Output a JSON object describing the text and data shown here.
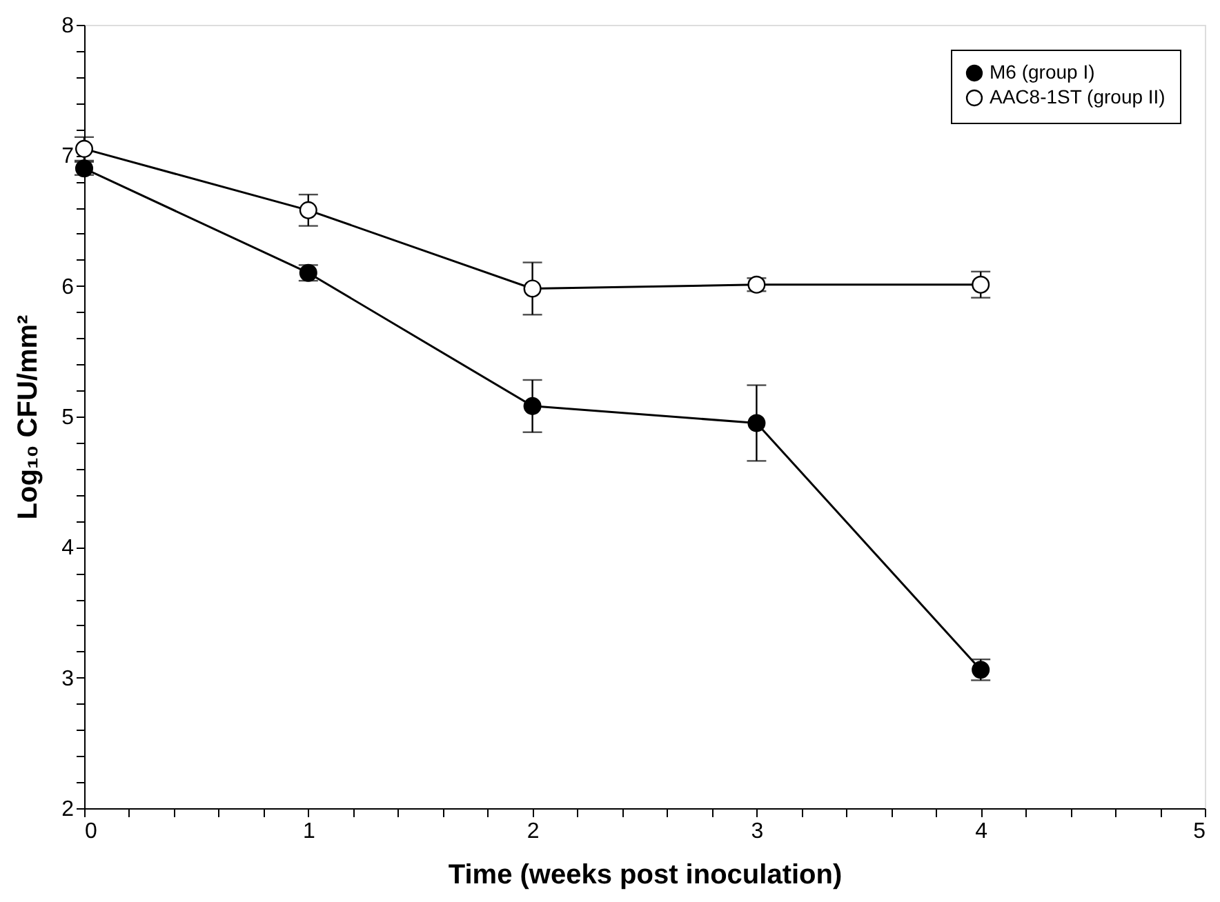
{
  "chart_data": {
    "type": "line",
    "xlabel": "Time (weeks post inoculation)",
    "ylabel": "Log₁₀ CFU/mm²",
    "x": [
      0,
      1,
      2,
      3,
      4
    ],
    "series": [
      {
        "name": "M6 (group I)",
        "color": "#000000",
        "values": [
          6.9,
          6.1,
          5.08,
          4.95,
          3.06
        ],
        "errors": [
          0.05,
          0.06,
          0.2,
          0.29,
          0.08
        ]
      },
      {
        "name": "AAC8-1ST (group II)",
        "color": "#ffffff",
        "values": [
          7.05,
          6.58,
          5.98,
          6.01,
          6.01
        ],
        "errors": [
          0.09,
          0.12,
          0.2,
          0.05,
          0.1
        ]
      }
    ],
    "xlim": [
      0,
      5
    ],
    "ylim": [
      2,
      8
    ],
    "xticks": [
      0,
      {
        "value": 0.2,
        "label": null
      },
      {
        "value": 0.4,
        "label": null
      },
      {
        "value": 0.6,
        "label": null
      },
      {
        "value": 0.8,
        "label": null
      },
      1,
      {
        "value": 1.2,
        "label": null
      },
      {
        "value": 1.4,
        "label": null
      },
      {
        "value": 1.6,
        "label": null
      },
      {
        "value": 1.8,
        "label": null
      },
      2,
      {
        "value": 2.2,
        "label": null
      },
      {
        "value": 2.4,
        "label": null
      },
      {
        "value": 2.6,
        "label": null
      },
      {
        "value": 2.8,
        "label": null
      },
      3,
      {
        "value": 3.2,
        "label": null
      },
      {
        "value": 3.4,
        "label": null
      },
      {
        "value": 3.6,
        "label": null
      },
      {
        "value": 3.8,
        "label": null
      },
      4,
      {
        "value": 4.2,
        "label": null
      },
      {
        "value": 4.4,
        "label": null
      },
      {
        "value": 4.6,
        "label": null
      },
      {
        "value": 4.8,
        "label": null
      },
      5
    ],
    "yticks": [
      2,
      {
        "value": 2.2,
        "label": null
      },
      {
        "value": 2.4,
        "label": null
      },
      {
        "value": 2.6,
        "label": null
      },
      {
        "value": 2.8,
        "label": null
      },
      3,
      {
        "value": 3.2,
        "label": null
      },
      {
        "value": 3.4,
        "label": null
      },
      {
        "value": 3.6,
        "label": null
      },
      {
        "value": 3.8,
        "label": null
      },
      4,
      {
        "value": 4.2,
        "label": null
      },
      {
        "value": 4.4,
        "label": null
      },
      {
        "value": 4.6,
        "label": null
      },
      {
        "value": 4.8,
        "label": null
      },
      5,
      {
        "value": 5.2,
        "label": null
      },
      {
        "value": 5.4,
        "label": null
      },
      {
        "value": 5.6,
        "label": null
      },
      {
        "value": 5.8,
        "label": null
      },
      6,
      {
        "value": 6.2,
        "label": null
      },
      {
        "value": 6.4,
        "label": null
      },
      {
        "value": 6.6,
        "label": null
      },
      {
        "value": 6.8,
        "label": null
      },
      7,
      {
        "value": 7.2,
        "label": null
      },
      {
        "value": 7.4,
        "label": null
      },
      {
        "value": 7.6,
        "label": null
      },
      {
        "value": 7.8,
        "label": null
      },
      8
    ],
    "grid": false,
    "legend": "top right",
    "marker": "circle",
    "line_style": "solid"
  }
}
